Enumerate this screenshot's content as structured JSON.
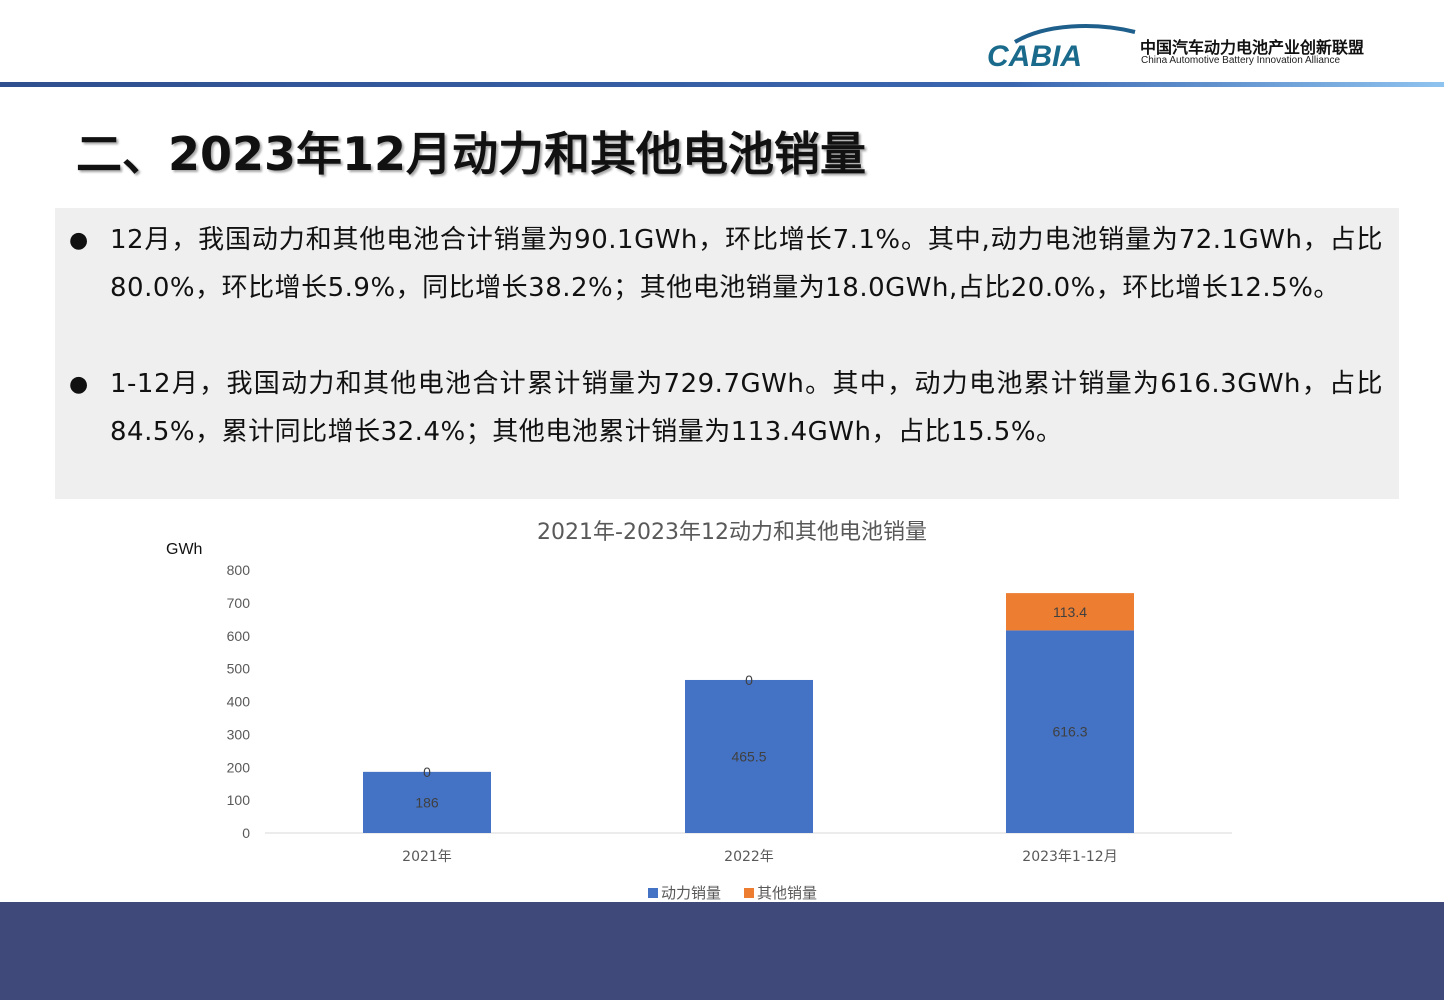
{
  "header": {
    "logo_text": "CABIA",
    "org_name_cn": "中国汽车动力电池产业创新联盟",
    "org_name_en": "China Automotive Battery Innovation Alliance"
  },
  "page_title": "二、2023年12月动力和其他电池销量",
  "bullets": [
    "12月，我国动力和其他电池合计销量为90.1GWh，环比增长7.1%。其中,动力电池销量为72.1GWh，占比80.0%，环比增长5.9%，同比增长38.2%；其他电池销量为18.0GWh,占比20.0%，环比增长12.5%。",
    "1-12月，我国动力和其他电池合计累计销量为729.7GWh。其中，动力电池累计销量为616.3GWh，占比84.5%，累计同比增长32.4%；其他电池累计销量为113.4GWh，占比15.5%。"
  ],
  "chart_data": {
    "type": "bar",
    "stacked": true,
    "title": "2021年-2023年12动力和其他电池销量",
    "ylabel": "GWh",
    "ylim": [
      0,
      800
    ],
    "yticks": [
      0,
      100,
      200,
      300,
      400,
      500,
      600,
      700,
      800
    ],
    "categories": [
      "2021年",
      "2022年",
      "2023年1-12月"
    ],
    "series": [
      {
        "name": "动力销量",
        "color": "#4472c4",
        "values": [
          186,
          465.5,
          616.3
        ],
        "labels": [
          "186",
          "465.5",
          "616.3"
        ]
      },
      {
        "name": "其他销量",
        "color": "#ed7d31",
        "values": [
          0,
          0,
          113.4
        ],
        "labels": [
          "0",
          "0",
          "113.4"
        ]
      }
    ],
    "legend": "bottom",
    "grid": false
  }
}
